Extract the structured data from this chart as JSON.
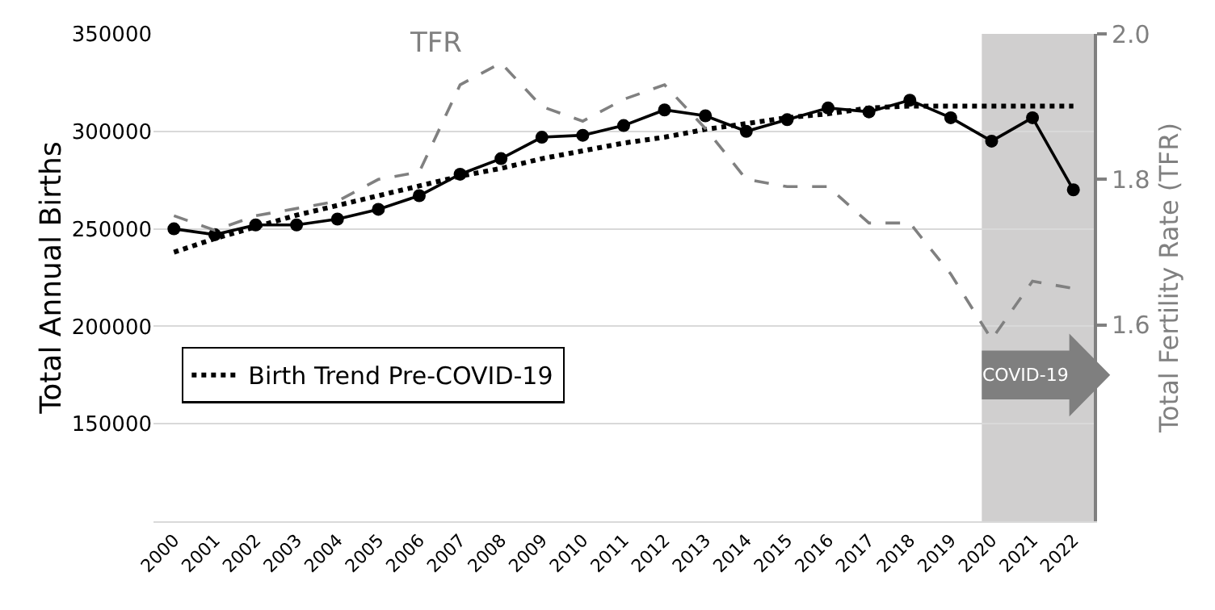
{
  "chart_data": {
    "type": "line",
    "ylabel": "Total Annual Births",
    "y2label": "Total Fertility Rate (TFR)",
    "categories": [
      "2000",
      "2001",
      "2002",
      "2003",
      "2004",
      "2005",
      "2006",
      "2007",
      "2008",
      "2009",
      "2010",
      "2011",
      "2012",
      "2013",
      "2014",
      "2015",
      "2016",
      "2017",
      "2018",
      "2019",
      "2020",
      "2021",
      "2022"
    ],
    "series": [
      {
        "color": "#000000",
        "marker": "circle",
        "line_style": "solid",
        "values": [
          250000,
          247000,
          252000,
          252000,
          255000,
          260000,
          267000,
          278000,
          286000,
          297000,
          298000,
          303000,
          311000,
          308000,
          300000,
          306000,
          312000,
          310000,
          316000,
          307000,
          295000,
          307000,
          270000
        ]
      },
      {
        "name": "Birth Trend Pre-COVID-19",
        "color": "#000000",
        "marker": "none",
        "line_style": "dotted",
        "values": [
          238000,
          245000,
          251000,
          257000,
          262000,
          267000,
          272000,
          277000,
          281000,
          286000,
          290000,
          294000,
          297000,
          301000,
          304000,
          307000,
          309000,
          312000,
          313000,
          313000,
          313000,
          313000,
          313000
        ]
      },
      {
        "name": "TFR",
        "color": "#808080",
        "marker": "none",
        "line_style": "dashed",
        "axis": "y2",
        "values": [
          1.75,
          1.73,
          1.75,
          1.76,
          1.77,
          1.8,
          1.81,
          1.93,
          1.96,
          1.9,
          1.88,
          1.91,
          1.93,
          1.87,
          1.8,
          1.79,
          1.79,
          1.74,
          1.74,
          1.67,
          1.58,
          1.66,
          1.65
        ]
      }
    ],
    "ylim": [
      100000,
      350000
    ],
    "yticks": [
      150000,
      200000,
      250000,
      300000,
      350000
    ],
    "y2lim": [
      1.33,
      2.0
    ],
    "y2ticks": [
      {
        "value": 1.6,
        "label": "1.6"
      },
      {
        "value": 1.8,
        "label": "1.8"
      },
      {
        "value": 2.0,
        "label": "2.0"
      }
    ],
    "bands": [
      {
        "axis": "x",
        "from": "2020",
        "to": "2022",
        "label": "COVID-19",
        "color": "#d0cfcf"
      }
    ],
    "grid": "y",
    "legend": "left"
  }
}
